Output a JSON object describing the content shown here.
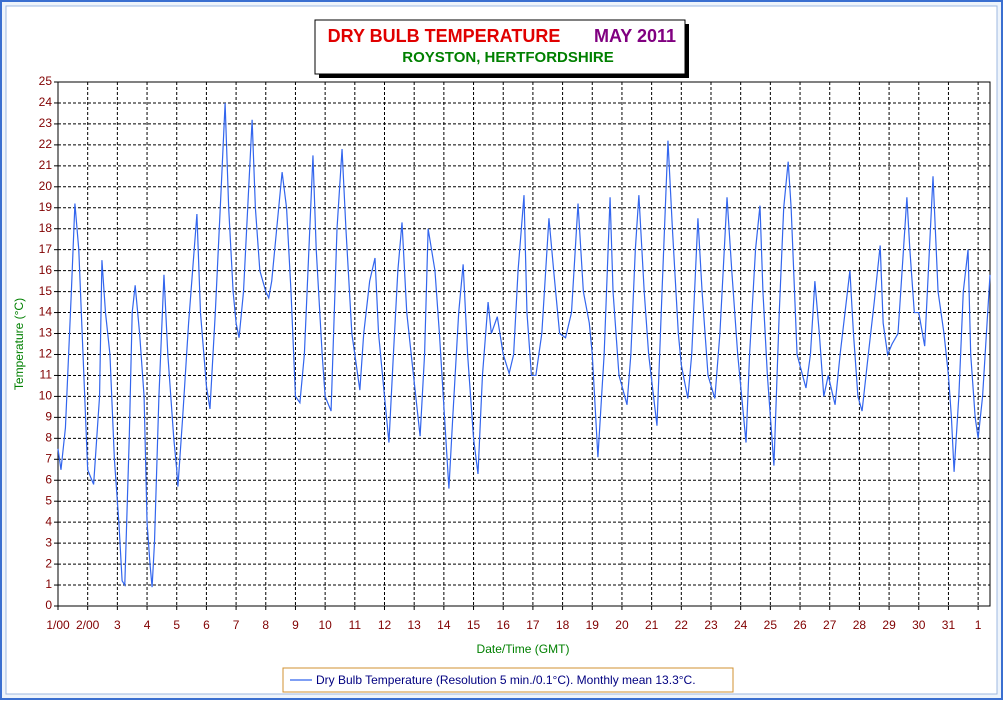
{
  "chart_data": {
    "type": "line",
    "title": "DRY BULB TEMPERATURE",
    "title_period": "MAY 2011",
    "subtitle": "ROYSTON, HERTFORDSHIRE",
    "x_label": "Date/Time (GMT)",
    "y_label": "Temperature (°C)",
    "grid": true,
    "xlim": [
      0,
      31.4
    ],
    "ylim": [
      0,
      25
    ],
    "yticks": [
      0,
      1,
      2,
      3,
      4,
      5,
      6,
      7,
      8,
      9,
      10,
      11,
      12,
      13,
      14,
      15,
      16,
      17,
      18,
      19,
      20,
      21,
      22,
      23,
      24,
      25
    ],
    "xticks": [
      {
        "value": 0,
        "label": "1/00"
      },
      {
        "value": 1,
        "label": "2/00"
      },
      {
        "value": 2,
        "label": "3"
      },
      {
        "value": 3,
        "label": "4"
      },
      {
        "value": 4,
        "label": "5"
      },
      {
        "value": 5,
        "label": "6"
      },
      {
        "value": 6,
        "label": "7"
      },
      {
        "value": 7,
        "label": "8"
      },
      {
        "value": 8,
        "label": "9"
      },
      {
        "value": 9,
        "label": "10"
      },
      {
        "value": 10,
        "label": "11"
      },
      {
        "value": 11,
        "label": "12"
      },
      {
        "value": 12,
        "label": "13"
      },
      {
        "value": 13,
        "label": "14"
      },
      {
        "value": 14,
        "label": "15"
      },
      {
        "value": 15,
        "label": "16"
      },
      {
        "value": 16,
        "label": "17"
      },
      {
        "value": 17,
        "label": "18"
      },
      {
        "value": 18,
        "label": "19"
      },
      {
        "value": 19,
        "label": "20"
      },
      {
        "value": 20,
        "label": "21"
      },
      {
        "value": 21,
        "label": "22"
      },
      {
        "value": 22,
        "label": "23"
      },
      {
        "value": 23,
        "label": "24"
      },
      {
        "value": 24,
        "label": "25"
      },
      {
        "value": 25,
        "label": "26"
      },
      {
        "value": 26,
        "label": "27"
      },
      {
        "value": 27,
        "label": "28"
      },
      {
        "value": 28,
        "label": "29"
      },
      {
        "value": 29,
        "label": "30"
      },
      {
        "value": 30,
        "label": "31"
      },
      {
        "value": 31,
        "label": "1"
      }
    ],
    "x": [
      0.0,
      0.1,
      0.25,
      0.45,
      0.57,
      0.7,
      0.9,
      1.0,
      1.2,
      1.4,
      1.48,
      1.6,
      1.75,
      1.9,
      2.05,
      2.16,
      2.25,
      2.4,
      2.5,
      2.6,
      2.75,
      2.9,
      3.0,
      3.1,
      3.17,
      3.25,
      3.4,
      3.57,
      3.7,
      3.9,
      4.0,
      4.04,
      4.2,
      4.4,
      4.68,
      4.8,
      5.0,
      5.12,
      5.3,
      5.5,
      5.63,
      5.75,
      5.9,
      6.0,
      6.1,
      6.25,
      6.54,
      6.65,
      6.8,
      7.0,
      7.1,
      7.2,
      7.55,
      7.7,
      7.85,
      8.0,
      8.15,
      8.3,
      8.59,
      8.7,
      8.9,
      9.0,
      9.2,
      9.4,
      9.57,
      9.7,
      9.9,
      10.17,
      10.3,
      10.5,
      10.68,
      10.8,
      11.0,
      11.15,
      11.3,
      11.45,
      11.59,
      11.75,
      11.9,
      12.2,
      12.35,
      12.47,
      12.7,
      12.85,
      13.17,
      13.3,
      13.5,
      13.65,
      13.8,
      14.0,
      14.15,
      14.3,
      14.49,
      14.6,
      14.8,
      15.0,
      15.2,
      15.35,
      15.5,
      15.7,
      15.8,
      15.95,
      16.1,
      16.3,
      16.54,
      16.7,
      16.9,
      17.1,
      17.3,
      17.52,
      17.7,
      17.9,
      18.0,
      18.19,
      18.4,
      18.6,
      18.7,
      18.9,
      19.0,
      19.17,
      19.3,
      19.45,
      19.57,
      19.75,
      19.9,
      20.18,
      20.35,
      20.55,
      20.7,
      20.9,
      21.0,
      21.22,
      21.35,
      21.56,
      21.7,
      21.9,
      22.13,
      22.3,
      22.54,
      22.7,
      22.9,
      23.18,
      23.3,
      23.5,
      23.65,
      23.75,
      23.9,
      24.12,
      24.3,
      24.45,
      24.6,
      24.7,
      24.9,
      25.2,
      25.35,
      25.5,
      25.65,
      25.8,
      25.95,
      26.18,
      26.35,
      26.68,
      26.8,
      26.95,
      27.09,
      27.3,
      27.5,
      27.7,
      27.8,
      27.95,
      28.1,
      28.3,
      28.6,
      28.7,
      28.85,
      29.0,
      29.2,
      29.48,
      29.65,
      29.85,
      30.0,
      30.1,
      30.19,
      30.35,
      30.5,
      30.66,
      30.75,
      30.9,
      31.0,
      31.15,
      31.4
    ],
    "series": [
      {
        "name": "Dry Bulb Temperature (Resolution 5 min./0.1°C). Monthly mean 13.3°C.",
        "color": "#3366ee",
        "values": [
          7.5,
          6.5,
          8.5,
          15,
          19.2,
          17,
          10,
          6.5,
          5.8,
          10,
          16.5,
          14,
          12,
          7,
          4,
          1.2,
          1,
          8,
          14,
          15.3,
          13,
          10,
          4,
          2,
          0.9,
          3,
          10,
          15.8,
          12,
          8,
          6.5,
          5.7,
          9,
          13.5,
          18.7,
          14,
          10.5,
          9.4,
          14,
          20,
          24,
          19,
          15,
          13.5,
          12.8,
          15,
          23.2,
          19,
          16,
          15,
          14.7,
          15.5,
          20.7,
          19,
          15,
          10,
          9.7,
          12,
          21.5,
          17,
          12,
          10,
          9.3,
          18,
          21.8,
          18,
          13,
          10.3,
          13,
          15.5,
          16.6,
          13,
          10,
          7.8,
          12,
          16,
          18.3,
          14,
          12,
          8.1,
          12,
          18,
          16,
          13,
          5.6,
          9,
          14,
          16.3,
          12,
          8,
          6.3,
          11,
          14.5,
          13,
          13.8,
          12,
          11.1,
          12,
          16,
          19.6,
          14,
          11,
          11,
          13,
          18.5,
          16,
          13,
          12.8,
          14,
          19.2,
          15,
          13.5,
          12,
          7.1,
          12,
          19.5,
          15,
          11,
          10.5,
          9.6,
          12,
          17,
          19.6,
          15,
          12,
          8.6,
          15,
          22.2,
          18,
          13,
          11.5,
          9.9,
          12,
          18.5,
          15,
          11,
          9.9,
          13,
          19.5,
          16,
          12,
          7.8,
          12,
          17,
          19.1,
          15,
          11,
          6.7,
          14,
          19,
          21.2,
          19,
          12,
          10.4,
          12,
          15.5,
          13,
          10,
          11,
          9.6,
          12,
          16,
          13,
          10,
          9.3,
          12,
          14.5,
          17.2,
          13.5,
          12,
          12.5,
          13,
          19.5,
          17,
          14,
          14,
          12.4,
          20.5,
          15,
          13,
          11,
          9,
          6.4,
          10,
          15,
          17,
          12,
          9,
          8,
          10,
          15.8
        ]
      }
    ]
  }
}
